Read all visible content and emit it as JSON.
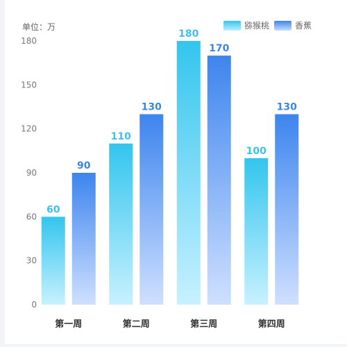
{
  "unit_label": "单位：万",
  "chart_data": {
    "type": "bar",
    "categories": [
      "第一周",
      "第二周",
      "第三周",
      "第四周"
    ],
    "series": [
      {
        "name": "猕猴桃",
        "values": [
          60,
          110,
          180,
          100
        ],
        "color_top": "#33c5ee",
        "color_bottom": "#c8f1ff",
        "label_color": "#3ac3ec"
      },
      {
        "name": "香蕉",
        "values": [
          90,
          130,
          170,
          130
        ],
        "color_top": "#3d85ee",
        "color_bottom": "#cfe0ff",
        "label_color": "#3a86e6"
      }
    ],
    "ylim": [
      0,
      180
    ],
    "yticks": [
      0,
      30,
      60,
      90,
      120,
      150,
      180
    ],
    "grid": false,
    "legend": "top-right",
    "data_labels": true
  }
}
